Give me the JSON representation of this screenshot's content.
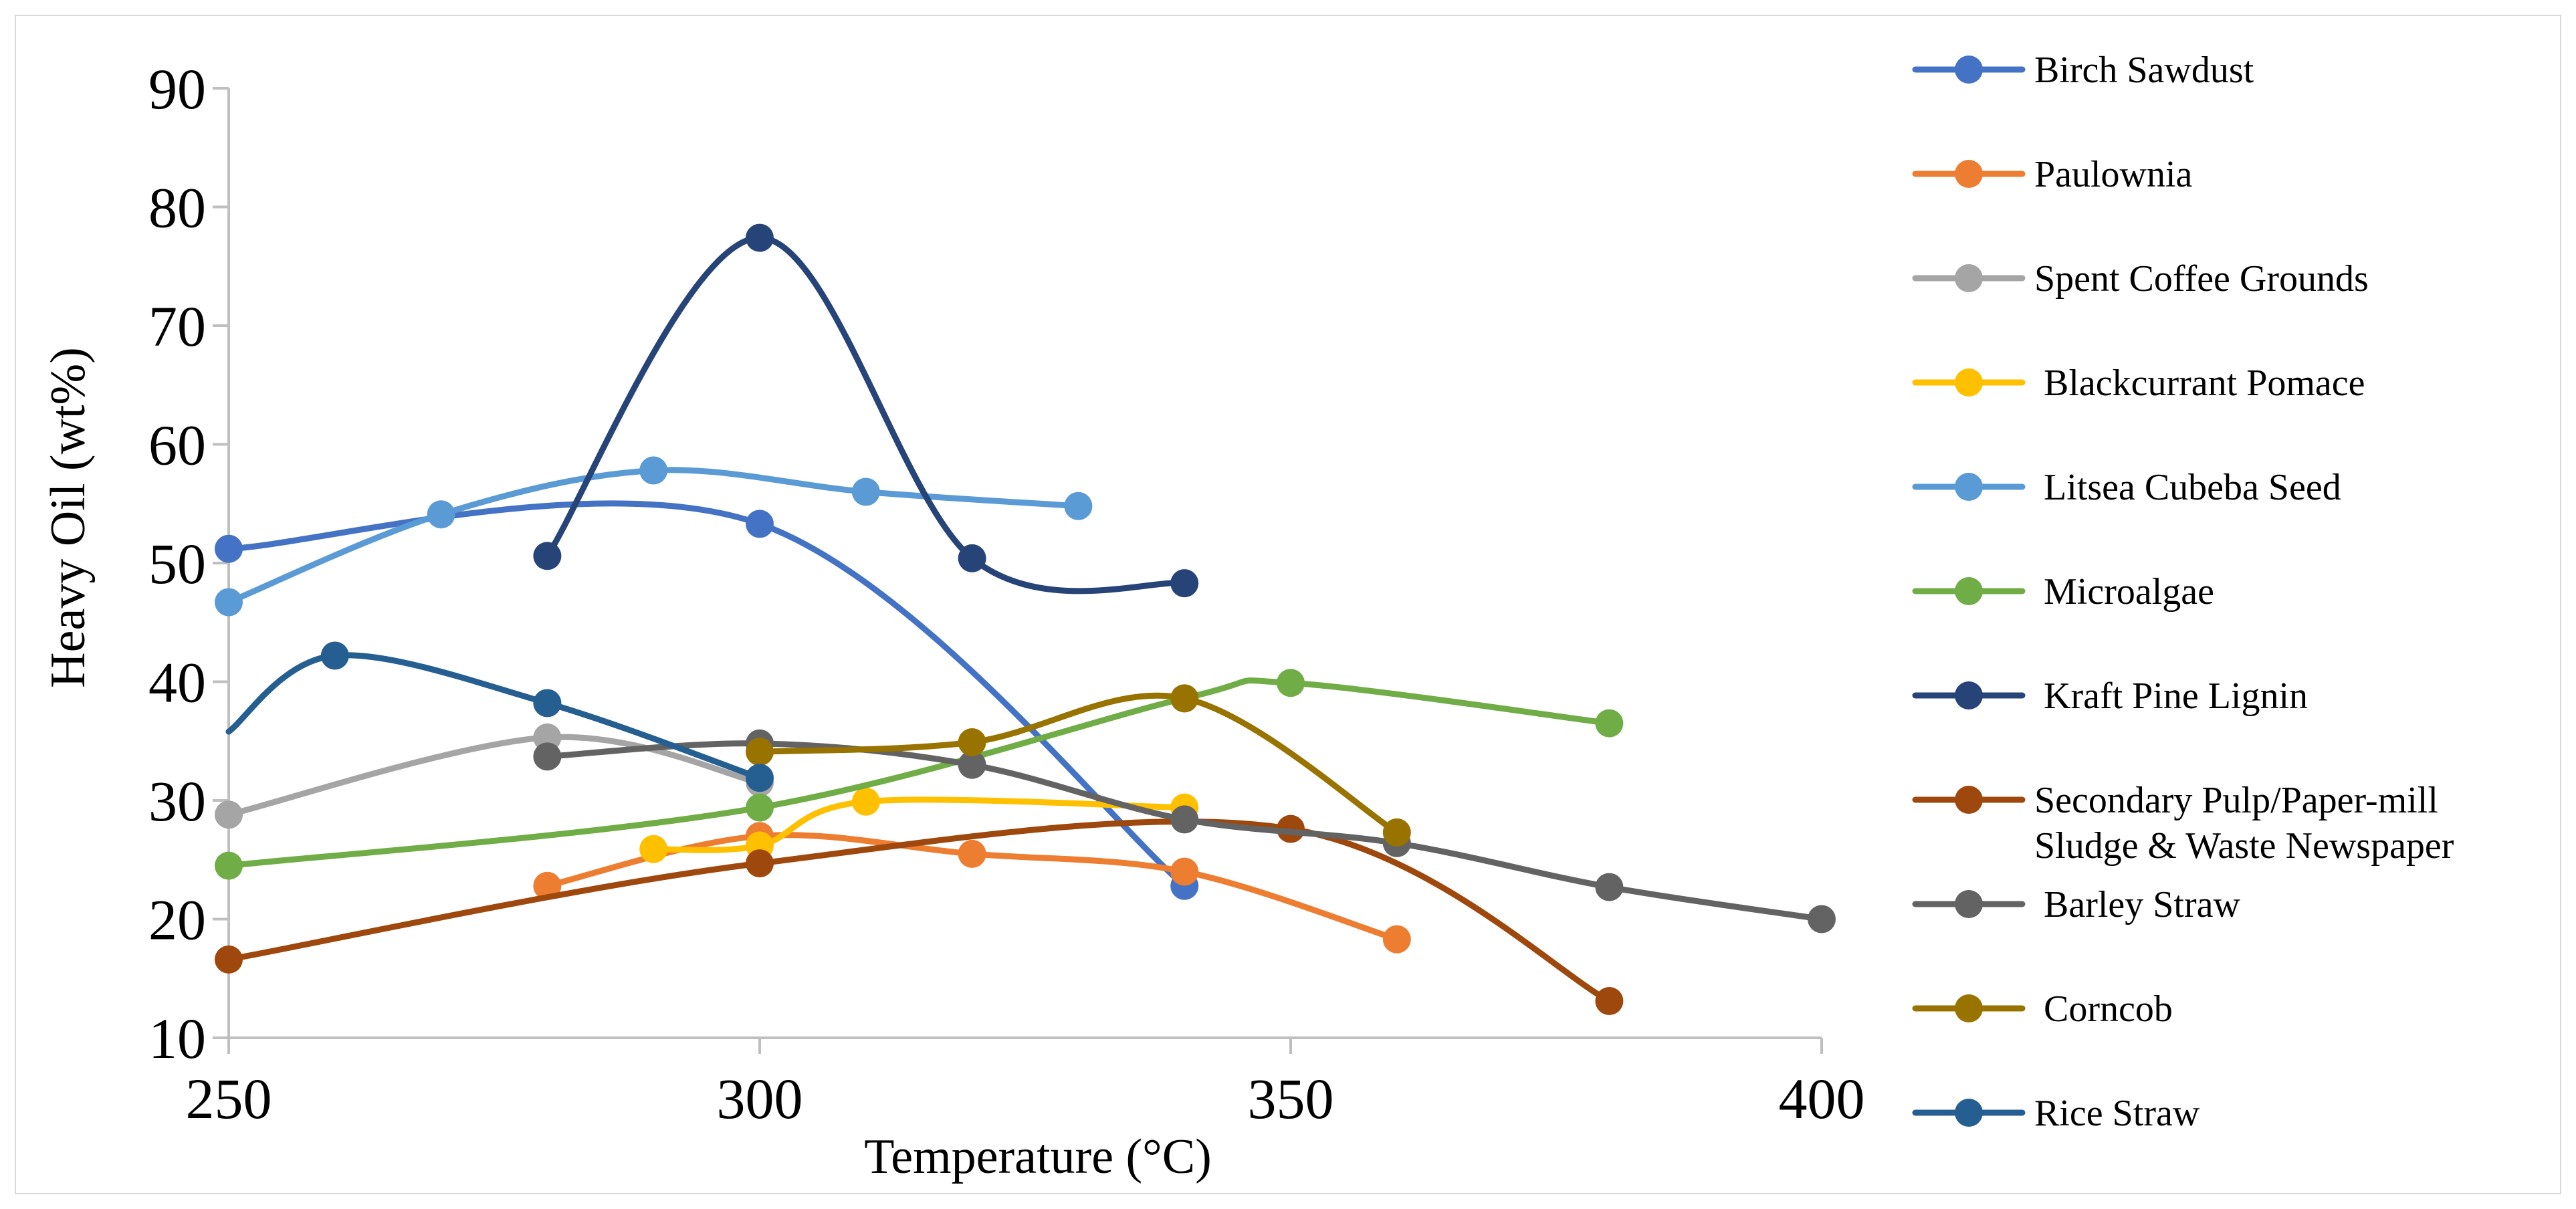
{
  "chart_data": {
    "type": "line",
    "title": "",
    "xlabel": "Temperature (°C)",
    "ylabel": "Heavy Oil (wt%)",
    "xlim": [
      250,
      400
    ],
    "ylim": [
      10,
      90
    ],
    "x_ticks": [
      250,
      300,
      350,
      400
    ],
    "y_ticks": [
      10,
      20,
      30,
      40,
      50,
      60,
      70,
      80,
      90
    ],
    "grid": false,
    "smooth": true,
    "legend_position": "right",
    "series": [
      {
        "name": "Birch Sawdust",
        "color": "#4472C4",
        "points": [
          [
            250,
            51.2
          ],
          [
            300,
            53.3
          ],
          [
            340,
            22.8
          ]
        ]
      },
      {
        "name": "Paulownia",
        "color": "#ED7D31",
        "points": [
          [
            280,
            22.8
          ],
          [
            300,
            27.0
          ],
          [
            320,
            25.5
          ],
          [
            340,
            24.0
          ],
          [
            360,
            18.3
          ]
        ]
      },
      {
        "name": "Spent Coffee Grounds",
        "color": "#A5A5A5",
        "points": [
          [
            250,
            28.8
          ],
          [
            280,
            35.3
          ],
          [
            300,
            31.5
          ]
        ]
      },
      {
        "name": "Blackcurrant Pomace",
        "label": " Blackcurrant Pomace",
        "color": "#FFC000",
        "points": [
          [
            290,
            25.9
          ],
          [
            300,
            26.2
          ],
          [
            310,
            29.9
          ],
          [
            340,
            29.4
          ]
        ]
      },
      {
        "name": "Litsea Cubeba Seed",
        "label": " Litsea Cubeba Seed",
        "color": "#5B9BD5",
        "points": [
          [
            250,
            46.7
          ],
          [
            270,
            54.1
          ],
          [
            290,
            57.8
          ],
          [
            310,
            56.0
          ],
          [
            330,
            54.8
          ]
        ]
      },
      {
        "name": "Microalgae",
        "label": " Microalgae",
        "color": "#70AD47",
        "points": [
          [
            250,
            24.5
          ],
          [
            300,
            29.4
          ],
          [
            340,
            38.6
          ],
          [
            350,
            39.9
          ],
          [
            380,
            36.5
          ]
        ]
      },
      {
        "name": "Kraft Pine Lignin",
        "label": " Kraft Pine Lignin",
        "color": "#264478",
        "points": [
          [
            280,
            50.6
          ],
          [
            300,
            77.4
          ],
          [
            320,
            50.4
          ],
          [
            340,
            48.3
          ]
        ]
      },
      {
        "name": "Secondary Pulp/Paper-mill Sludge & Waste Newspaper",
        "label_lines": [
          "Secondary Pulp/Paper-mill",
          "Sludge & Waste Newspaper"
        ],
        "color": "#9E480E",
        "points": [
          [
            250,
            16.6
          ],
          [
            300,
            24.7
          ],
          [
            350,
            27.6
          ],
          [
            380,
            13.1
          ]
        ]
      },
      {
        "name": "Barley Straw",
        "label": " Barley Straw",
        "color": "#636363",
        "points": [
          [
            280,
            33.7
          ],
          [
            300,
            34.8
          ],
          [
            320,
            33.0
          ],
          [
            340,
            28.4
          ],
          [
            360,
            26.4
          ],
          [
            380,
            22.7
          ],
          [
            400,
            20.0
          ]
        ]
      },
      {
        "name": "Corncob",
        "label": " Corncob",
        "color": "#997300",
        "points": [
          [
            300,
            34.1
          ],
          [
            320,
            34.9
          ],
          [
            340,
            38.6
          ],
          [
            360,
            27.3
          ]
        ]
      },
      {
        "name": "Rice Straw",
        "color": "#255E91",
        "points": [
          [
            250,
            35.8
          ],
          [
            260,
            42.2
          ],
          [
            280,
            38.2
          ],
          [
            300,
            31.9
          ]
        ],
        "first_point_marker": false
      }
    ]
  }
}
